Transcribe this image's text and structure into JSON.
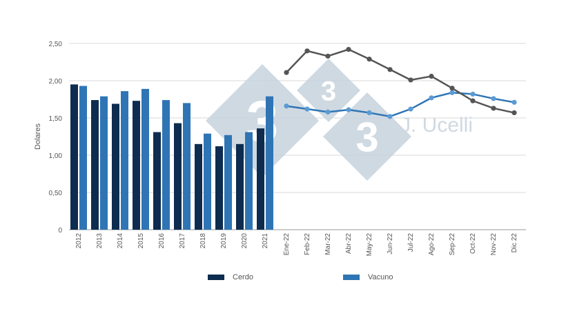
{
  "chart_data": {
    "type": "bar+line",
    "ylabel": "Dolares",
    "ylim": [
      0,
      2.5
    ],
    "yticks": [
      "0",
      "0,50",
      "1,00",
      "1,50",
      "2,00",
      "2,50"
    ],
    "grid": true,
    "years": [
      "2012",
      "2013",
      "2014",
      "2015",
      "2016",
      "2017",
      "2018",
      "2019",
      "2020",
      "2021"
    ],
    "months": [
      "Ene-22",
      "Feb-22",
      "Mar-22",
      "Abr-22",
      "May-22",
      "Jun-22",
      "Jul-22",
      "Ago-22",
      "Sep-22",
      "Oct-22",
      "Nov-22",
      "Dic 22"
    ],
    "series": [
      {
        "name": "Cerdo",
        "color": "#0d2c4f",
        "annual": [
          1.95,
          1.74,
          1.69,
          1.73,
          1.31,
          1.43,
          1.15,
          1.12,
          1.15,
          1.36
        ],
        "monthly": [
          2.11,
          2.4,
          2.33,
          2.42,
          2.29,
          2.15,
          2.01,
          2.06,
          1.9,
          1.73,
          1.63,
          1.57
        ],
        "line_color": "#555555"
      },
      {
        "name": "Vacuno",
        "color": "#2f75b5",
        "annual": [
          1.93,
          1.79,
          1.86,
          1.89,
          1.74,
          1.7,
          1.29,
          1.27,
          1.31,
          1.79
        ],
        "monthly": [
          1.66,
          1.62,
          1.58,
          1.61,
          1.57,
          1.52,
          1.62,
          1.77,
          1.84,
          1.82,
          1.76,
          1.71
        ],
        "line_color": "#2f75b5",
        "marker_color": "#5b9bd5"
      }
    ],
    "legend_position": "bottom"
  },
  "watermark": {
    "text": "J. Ucelli",
    "digit": "3",
    "color": "#c7d3de"
  }
}
